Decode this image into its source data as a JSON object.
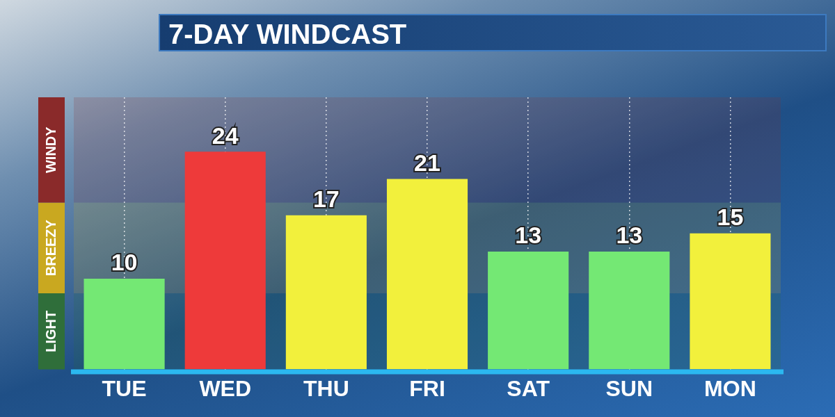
{
  "chart_data": {
    "type": "bar",
    "title": "7-DAY WINDCAST",
    "categories": [
      "TUE",
      "WED",
      "THU",
      "FRI",
      "SAT",
      "SUN",
      "MON"
    ],
    "values": [
      10,
      24,
      17,
      21,
      13,
      13,
      15
    ],
    "colors": [
      "#74e874",
      "#ee3a3a",
      "#f2f03c",
      "#f2f03c",
      "#74e874",
      "#74e874",
      "#f2f03c"
    ],
    "ylim": [
      0,
      30
    ],
    "bands": [
      {
        "axis": "y",
        "from": 0,
        "to": 8.4,
        "label": "LIGHT",
        "color": "#2f6e3a"
      },
      {
        "axis": "y",
        "from": 8.4,
        "to": 18.4,
        "label": "BREEZY",
        "color": "#c9a820"
      },
      {
        "axis": "y",
        "from": 18.4,
        "to": 30,
        "label": "WINDY",
        "color": "#8a2a2a"
      }
    ],
    "data_labels": true,
    "grid": "x",
    "tick_labels": "x",
    "legend": false
  }
}
